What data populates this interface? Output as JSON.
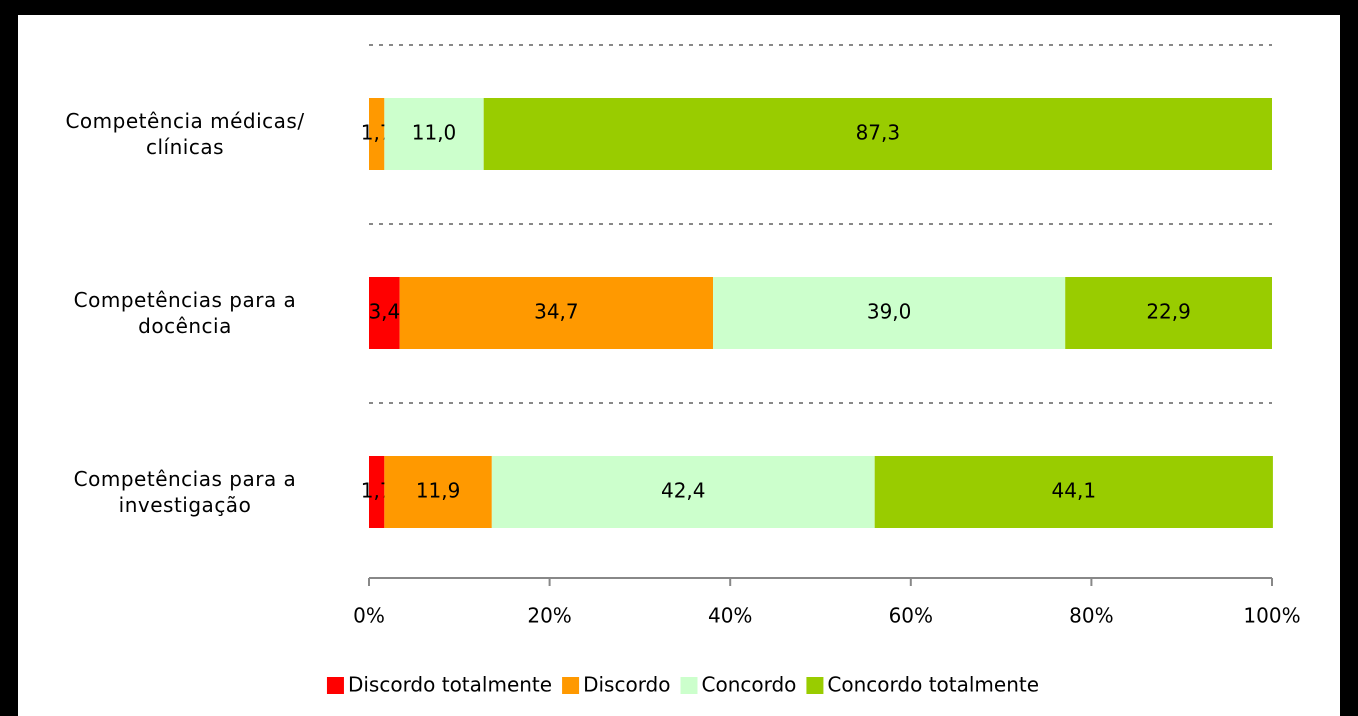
{
  "chart_data": {
    "type": "stacked_barh",
    "categories": [
      "Competência médicas/\nclínicas",
      "Competências para a\ndocência",
      "Competências para a\ninvestigação"
    ],
    "series": [
      {
        "name": "Discordo totalmente",
        "color": "#ff0000",
        "values": [
          null,
          3.4,
          1.7
        ],
        "value_labels": [
          null,
          "3,4",
          "1,7"
        ]
      },
      {
        "name": "Discordo",
        "color": "#ff9900",
        "values": [
          1.7,
          34.7,
          11.9
        ],
        "value_labels": [
          "1,7",
          "34,7",
          "11,9"
        ]
      },
      {
        "name": "Concordo",
        "color": "#ccffcc",
        "values": [
          11.0,
          39.0,
          42.4
        ],
        "value_labels": [
          "11,0",
          "39,0",
          "42,4"
        ]
      },
      {
        "name": "Concordo totalmente",
        "color": "#99cc00",
        "values": [
          87.3,
          22.9,
          44.1
        ],
        "value_labels": [
          "87,3",
          "22,9",
          "44,1"
        ]
      }
    ],
    "xlim": [
      0,
      100
    ],
    "xticks": [
      {
        "value": 0,
        "label": "0%"
      },
      {
        "value": 20,
        "label": "20%"
      },
      {
        "value": 40,
        "label": "40%"
      },
      {
        "value": 60,
        "label": "60%"
      },
      {
        "value": 80,
        "label": "80%"
      },
      {
        "value": 100,
        "label": "100%"
      }
    ],
    "grid": true,
    "legend": "bottom"
  }
}
